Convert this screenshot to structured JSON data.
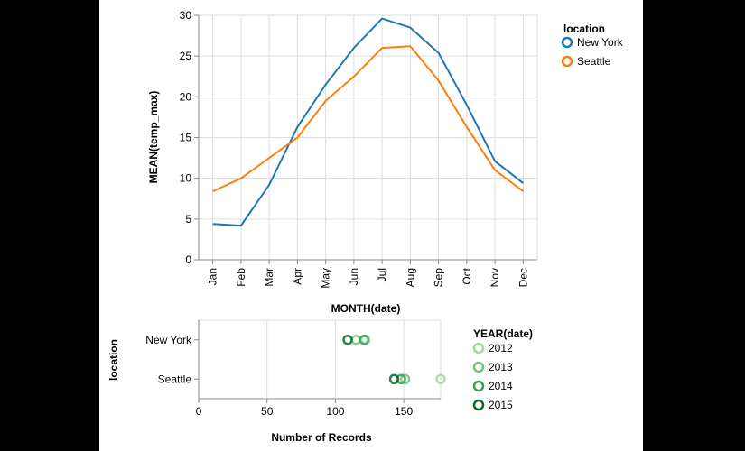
{
  "chart_data": [
    {
      "type": "line",
      "xlabel": "MONTH(date)",
      "ylabel": "MEAN(temp_max)",
      "categories": [
        "Jan",
        "Feb",
        "Mar",
        "Apr",
        "May",
        "Jun",
        "Jul",
        "Aug",
        "Sep",
        "Oct",
        "Nov",
        "Dec"
      ],
      "ylim": [
        0,
        30
      ],
      "yticks": [
        0,
        5,
        10,
        15,
        20,
        25,
        30
      ],
      "grid": true,
      "legend": {
        "title": "location",
        "placement": "right"
      },
      "series": [
        {
          "name": "New York",
          "color": "#1f77b4",
          "values": [
            4.4,
            4.2,
            9.2,
            16.3,
            21.5,
            26.0,
            29.6,
            28.5,
            25.4,
            19.0,
            12.1,
            9.4
          ]
        },
        {
          "name": "Seattle",
          "color": "#ff7f0e",
          "values": [
            8.4,
            10.0,
            12.5,
            15.0,
            19.5,
            22.5,
            26.0,
            26.2,
            22.0,
            16.3,
            11.0,
            8.4
          ]
        }
      ]
    },
    {
      "type": "scatter",
      "xlabel": "Number of Records",
      "ylabel": "location",
      "categories": [
        "New York",
        "Seattle"
      ],
      "xlim": [
        0,
        177
      ],
      "xticks": [
        0,
        50,
        100,
        150
      ],
      "grid": true,
      "legend": {
        "title": "YEAR(date)",
        "placement": "right"
      },
      "series": [
        {
          "name": "2012",
          "color": "#a1d99b",
          "values": [
            122,
            177
          ]
        },
        {
          "name": "2013",
          "color": "#74c476",
          "values": [
            115,
            151
          ]
        },
        {
          "name": "2014",
          "color": "#31a354",
          "values": [
            121,
            148
          ]
        },
        {
          "name": "2015",
          "color": "#006d2c",
          "values": [
            109,
            143
          ]
        }
      ]
    }
  ]
}
